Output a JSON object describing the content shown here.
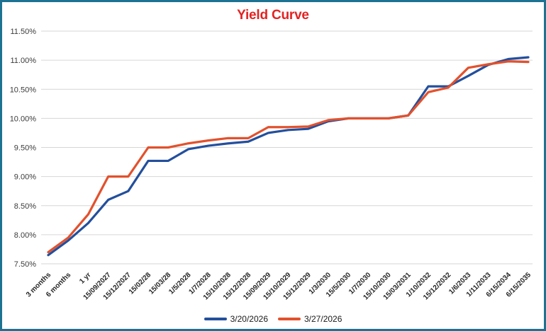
{
  "window": {
    "border_color": "#1d7292",
    "background_color": "#ffffff"
  },
  "chart_data": {
    "type": "line",
    "title": "Yield Curve",
    "title_color": "#e32221",
    "grid": true,
    "grid_color": "#d6d6d6",
    "axis_text_color": "#3b3b3b",
    "x_label_color": "#262626",
    "legend_position": "bottom",
    "categories": [
      "3 months",
      "6 months",
      "1 yr",
      "15/09/2027",
      "15/12/2027",
      "15/02/28",
      "15/03/28",
      "1/5/2028",
      "1/7/2028",
      "15/10/2028",
      "15/12/2028",
      "15/09/2029",
      "15/10/2029",
      "15/12/2029",
      "1/3/2030",
      "15/5/2030",
      "1/7/2030",
      "15/10/2030",
      "15/03/2031",
      "1/10/2032",
      "15/12/2032",
      "1/6/2033",
      "1/11/2033",
      "6/15/2034",
      "6/15/2035"
    ],
    "series": [
      {
        "name": "3/20/2026",
        "color": "#234f9d",
        "values": [
          7.65,
          7.9,
          8.2,
          8.6,
          8.75,
          9.27,
          9.27,
          9.47,
          9.53,
          9.57,
          9.6,
          9.75,
          9.8,
          9.82,
          9.95,
          10.0,
          10.0,
          10.0,
          10.05,
          10.55,
          10.55,
          10.73,
          10.92,
          11.02,
          11.05
        ]
      },
      {
        "name": "3/27/2026",
        "color": "#e2512d",
        "values": [
          7.7,
          7.95,
          8.35,
          9.0,
          9.0,
          9.5,
          9.5,
          9.57,
          9.62,
          9.66,
          9.66,
          9.85,
          9.85,
          9.86,
          9.97,
          10.0,
          10.0,
          10.0,
          10.05,
          10.45,
          10.53,
          10.87,
          10.93,
          10.98,
          10.97
        ]
      }
    ],
    "y_axis": {
      "min": 7.5,
      "max": 11.5,
      "step": 0.5,
      "tick_labels": [
        "7.50%",
        "8.00%",
        "8.50%",
        "9.00%",
        "9.50%",
        "10.00%",
        "10.50%",
        "11.00%",
        "11.50%"
      ]
    }
  }
}
